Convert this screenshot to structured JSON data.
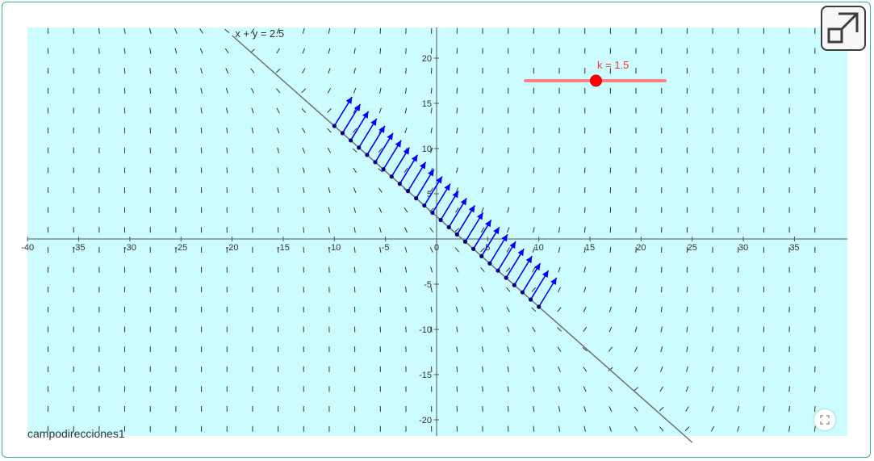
{
  "applet": {
    "name": "campodirecciones1",
    "line_label": "x + y = 2.5",
    "slider_label": "k = 1.5",
    "slider": {
      "label": "k",
      "value": 1.5,
      "min": -10,
      "max": 10
    },
    "line_constant": 2.5,
    "x_ticks": [
      "-40",
      "-35",
      "-30",
      "-25",
      "-20",
      "-15",
      "-10",
      "-5",
      "0",
      "5",
      "10",
      "15",
      "20",
      "25",
      "30",
      "35"
    ],
    "y_ticks": [
      "20",
      "15",
      "10",
      "5",
      "-5",
      "-10",
      "-15",
      "-20"
    ],
    "x_range": [
      -40,
      40
    ],
    "y_range": [
      -22,
      23.5
    ],
    "colors": {
      "background": "#ccfcff",
      "axes": "#555555",
      "line": "#707070",
      "vectors": "#0000ff",
      "points": "#000080",
      "slider": "#ff0000",
      "field_segments": "#333333"
    }
  },
  "controls": {
    "expand_icon": "expand-icon",
    "fullscreen_icon": "fullscreen-icon"
  }
}
